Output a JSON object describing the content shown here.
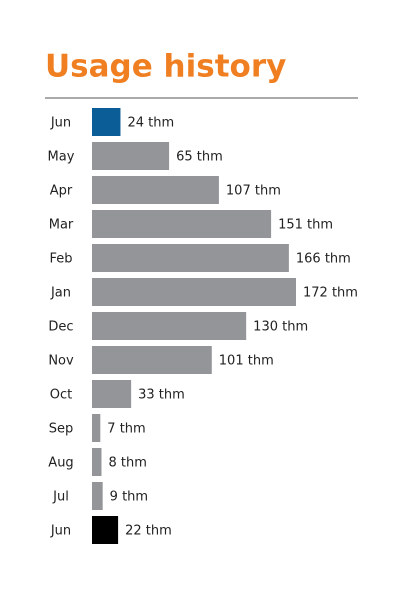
{
  "chart_data": {
    "type": "bar",
    "orientation": "horizontal",
    "title": "Usage history",
    "categories": [
      "Jun",
      "May",
      "Apr",
      "Mar",
      "Feb",
      "Jan",
      "Dec",
      "Nov",
      "Oct",
      "Sep",
      "Aug",
      "Jul",
      "Jun"
    ],
    "values": [
      24,
      65,
      107,
      151,
      166,
      172,
      130,
      101,
      33,
      7,
      8,
      9,
      22
    ],
    "value_labels": [
      "24 thm",
      "65 thm",
      "107 thm",
      "151 thm",
      "166 thm",
      "172 thm",
      "130 thm",
      "101 thm",
      "33 thm",
      "7 thm",
      "8 thm",
      "9 thm",
      "22 thm"
    ],
    "colors": [
      "#0b5d98",
      "#939598",
      "#939598",
      "#939598",
      "#939598",
      "#939598",
      "#939598",
      "#939598",
      "#939598",
      "#939598",
      "#939598",
      "#939598",
      "#000000"
    ]
  }
}
